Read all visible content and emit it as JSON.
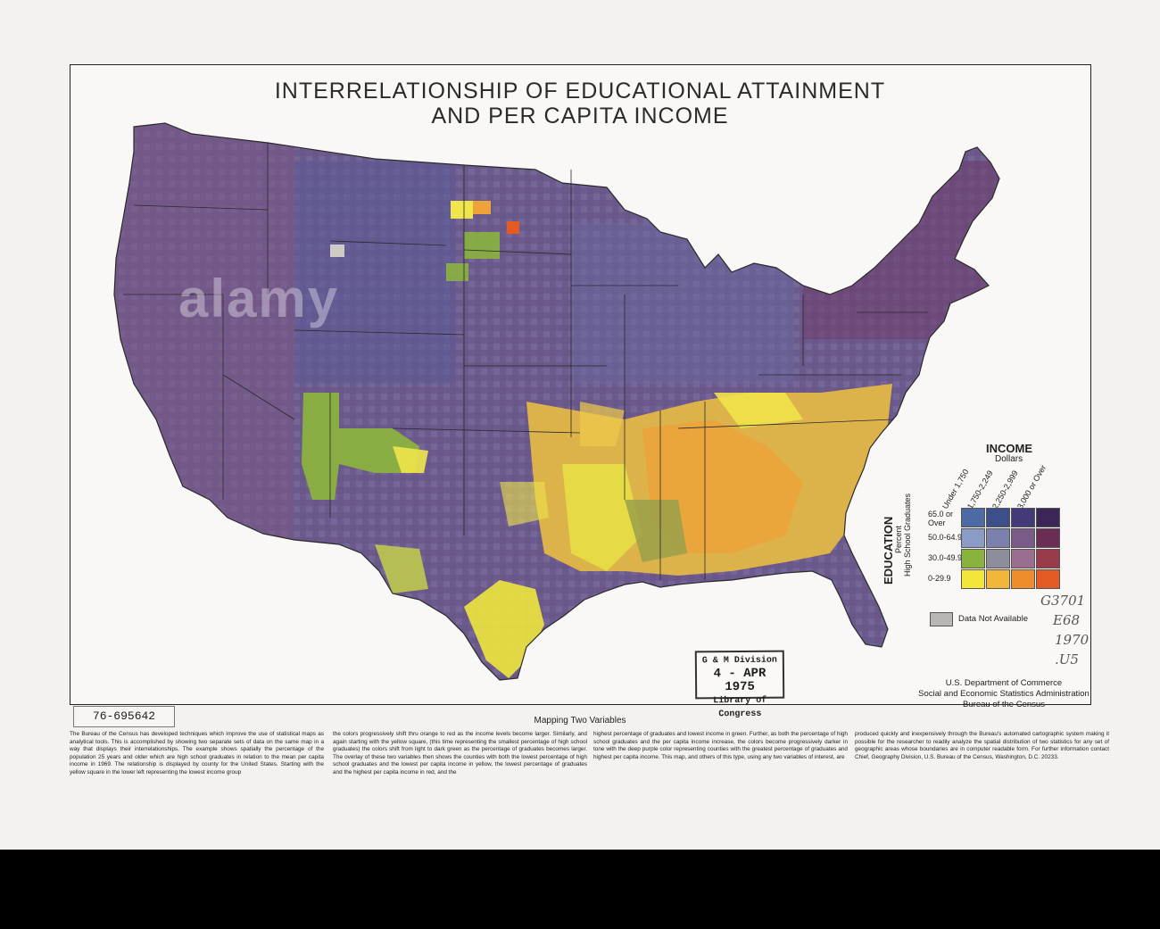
{
  "title": {
    "line1": "INTERRELATIONSHIP OF EDUCATIONAL ATTAINMENT",
    "line2": "AND PER CAPITA INCOME"
  },
  "legend": {
    "income_title": "INCOME",
    "income_subtitle": "Dollars",
    "income_classes": [
      "Under 1,750",
      "1,750-2,249",
      "2,250-2,999",
      "3,000 or Over"
    ],
    "education_title": "EDUCATION",
    "education_subtitle1": "Percent",
    "education_subtitle2": "High School Graduates",
    "education_classes": [
      "65.0 or Over",
      "50.0-64.9",
      "30.0-49.9",
      "0-29.9"
    ],
    "data_not_available": "Data Not Available",
    "colors": [
      [
        "#4d6aa5",
        "#3d4f8a",
        "#433a78",
        "#3b2657"
      ],
      [
        "#8a9bc6",
        "#7b80ad",
        "#7a5a88",
        "#6c2d55"
      ],
      [
        "#8ab33e",
        "#8e8d9a",
        "#9a6e8e",
        "#9a3b4b"
      ],
      [
        "#f3e53a",
        "#f2b63a",
        "#ee8c2e",
        "#e35a22"
      ]
    ],
    "na_color": "#b9b6b3"
  },
  "stamp": {
    "line1": "G & M Division",
    "line2": "4 - APR 1975",
    "line3": "Library of Congress"
  },
  "pencil_notes": [
    "G3701",
    "E68",
    "1970",
    ".U5"
  ],
  "agency": {
    "line1": "U.S. Department of Commerce",
    "line2": "Social and Economic Statistics Administration",
    "line3": "Bureau of the Census"
  },
  "catalog_number": "76-695642",
  "section_heading": "Mapping Two Variables",
  "text_columns": [
    "The Bureau of the Census has developed techniques which improve the use of statistical maps as analytical tools. This is accomplished by showing two separate sets of data on the same map in a way that displays their interrelationships. The example shows spatially the percentage of the population 25 years and older which are high school graduates in relation to the mean per capita income in 1969. The relationship is displayed by county for the United States. Starting with the yellow square in the lower left representing the lowest income group",
    "the colors progressively shift thru orange to red as the income levels become larger. Similarly, and again starting with the yellow square, (this time representing the smallest percentage of high school graduates) the colors shift from light to dark green as the percentage of graduates becomes larger. The overlay of these two variables then shows the counties with both the lowest percentage of high school graduates and the lowest per capita income in yellow, the lowest percentage of graduates and the highest per capita income in red, and the",
    "highest percentage of graduates and lowest income in green. Further, as both the percentage of high school graduates and the per capita income increase, the colors become progressively darker in tone with the deep purple color representing counties with the greatest percentage of graduates and highest per capita income. This map, and others of this type, using any two variables of interest, are",
    "produced quickly and inexpensively through the Bureau's automated cartographic system making it possible for the researcher to readily analyze the spatial distribution of two statistics for any set of geographic areas whose boundaries are in computer readable form. For further information contact Chief, Geography Division, U.S. Bureau of the Census, Washington, D.C. 20233."
  ],
  "watermark": "alamy"
}
